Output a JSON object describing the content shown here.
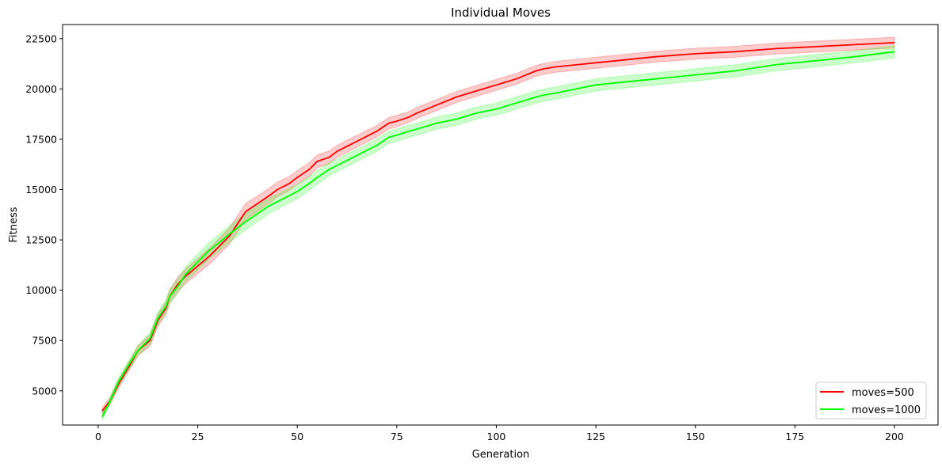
{
  "chart_data": {
    "type": "line",
    "title": "Individual Moves",
    "xlabel": "Generation",
    "ylabel": "Fitness",
    "xlim": [
      -8.95,
      210.95
    ],
    "ylim": [
      3300,
      23200
    ],
    "xticks": [
      0,
      25,
      50,
      75,
      100,
      125,
      150,
      175,
      200
    ],
    "yticks": [
      5000,
      7500,
      10000,
      12500,
      15000,
      17500,
      20000,
      22500
    ],
    "grid": false,
    "legend_position": "lower-right",
    "series": [
      {
        "name": "moves=500",
        "color": "#ff0000",
        "band_color": "#ff0000",
        "x": [
          1,
          3,
          5,
          8,
          10,
          13,
          15,
          17,
          18,
          20,
          22,
          25,
          28,
          30,
          33,
          35,
          37,
          40,
          43,
          45,
          48,
          50,
          53,
          55,
          58,
          60,
          63,
          65,
          68,
          70,
          73,
          75,
          78,
          80,
          85,
          90,
          95,
          100,
          105,
          110,
          112,
          115,
          120,
          125,
          130,
          135,
          140,
          150,
          160,
          170,
          180,
          190,
          200
        ],
        "mean": [
          4000,
          4500,
          5300,
          6300,
          7000,
          7500,
          8500,
          9100,
          9700,
          10300,
          10700,
          11200,
          11700,
          12100,
          12700,
          13300,
          13900,
          14300,
          14700,
          15000,
          15300,
          15600,
          16000,
          16400,
          16600,
          16900,
          17200,
          17400,
          17700,
          17900,
          18300,
          18400,
          18600,
          18800,
          19200,
          19600,
          19900,
          20200,
          20500,
          20900,
          21000,
          21100,
          21200,
          21300,
          21400,
          21500,
          21600,
          21750,
          21850,
          22000,
          22100,
          22200,
          22300
        ],
        "spread": [
          150,
          180,
          200,
          220,
          250,
          280,
          300,
          320,
          330,
          350,
          360,
          380,
          390,
          400,
          400,
          400,
          400,
          380,
          370,
          360,
          350,
          340,
          330,
          320,
          310,
          300,
          300,
          290,
          290,
          280,
          280,
          280,
          270,
          270,
          270,
          270,
          270,
          270,
          270,
          270,
          270,
          270,
          270,
          270,
          270,
          270,
          270,
          270,
          270,
          270,
          270,
          270,
          270
        ]
      },
      {
        "name": "moves=1000",
        "color": "#00ff00",
        "band_color": "#00ff00",
        "x": [
          1,
          3,
          5,
          8,
          10,
          13,
          15,
          17,
          18,
          20,
          22,
          25,
          28,
          30,
          33,
          35,
          37,
          40,
          43,
          45,
          48,
          50,
          53,
          55,
          58,
          60,
          63,
          65,
          68,
          70,
          73,
          75,
          78,
          80,
          85,
          90,
          95,
          100,
          105,
          110,
          112,
          115,
          120,
          125,
          130,
          135,
          140,
          150,
          160,
          170,
          180,
          190,
          200
        ],
        "mean": [
          3700,
          4500,
          5400,
          6400,
          7000,
          7600,
          8600,
          9200,
          9700,
          10200,
          10800,
          11400,
          12000,
          12300,
          12800,
          13100,
          13400,
          13800,
          14200,
          14400,
          14700,
          14900,
          15300,
          15600,
          16000,
          16200,
          16500,
          16700,
          17000,
          17200,
          17600,
          17700,
          17900,
          18000,
          18300,
          18500,
          18800,
          19000,
          19300,
          19600,
          19700,
          19800,
          20000,
          20200,
          20300,
          20400,
          20500,
          20700,
          20900,
          21200,
          21400,
          21600,
          21850
        ],
        "spread": [
          150,
          180,
          200,
          230,
          250,
          280,
          300,
          320,
          330,
          350,
          370,
          390,
          400,
          410,
          410,
          410,
          400,
          390,
          380,
          370,
          360,
          350,
          340,
          330,
          320,
          310,
          310,
          300,
          300,
          300,
          300,
          300,
          300,
          300,
          300,
          300,
          300,
          300,
          300,
          300,
          300,
          300,
          300,
          300,
          300,
          300,
          300,
          300,
          300,
          300,
          300,
          300,
          300
        ]
      }
    ]
  }
}
